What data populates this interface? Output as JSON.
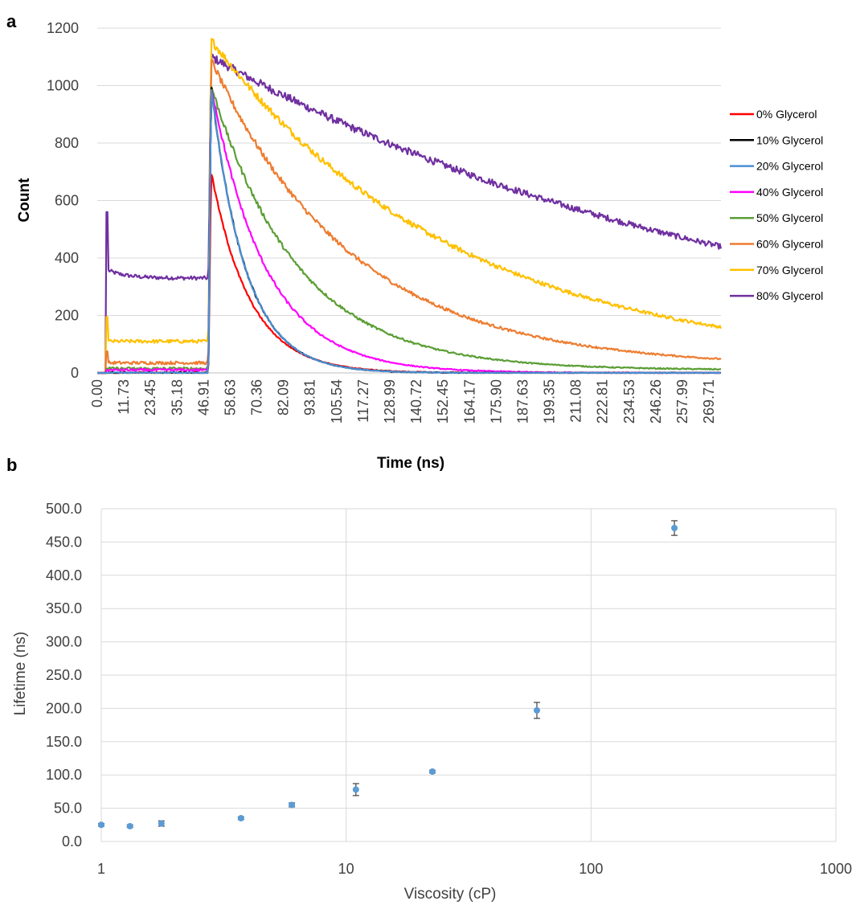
{
  "panel_a": {
    "letter": "a",
    "chart_data": {
      "type": "line",
      "xlabel": "Time (ns)",
      "ylabel": "Count",
      "xlim": [
        0,
        275
      ],
      "ylim": [
        0,
        1200
      ],
      "y_ticks": [
        "0",
        "200",
        "400",
        "600",
        "800",
        "1000",
        "1200"
      ],
      "x_tick_labels": [
        "0.00",
        "11.73",
        "23.45",
        "35.18",
        "46.91",
        "58.63",
        "70.36",
        "82.09",
        "93.81",
        "105.54",
        "117.27",
        "128.99",
        "140.72",
        "152.45",
        "164.17",
        "175.90",
        "187.63",
        "199.35",
        "211.08",
        "222.81",
        "234.53",
        "246.26",
        "257.99",
        "269.71"
      ],
      "grid": "horizontal",
      "legend_position": "right",
      "series": [
        {
          "name": "0% Glycerol",
          "color": "#ff0000",
          "pre_level": 0,
          "peak": 700,
          "tau": 17,
          "plateau": 0,
          "noise": 10
        },
        {
          "name": "10% Glycerol",
          "color": "#000000",
          "pre_level": 0,
          "peak": 1000,
          "tau": 15,
          "plateau": 0,
          "noise": 10
        },
        {
          "name": "20% Glycerol",
          "color": "#4a8fd4",
          "pre_level": 0,
          "peak": 1000,
          "tau": 15,
          "plateau": 0,
          "noise": 10
        },
        {
          "name": "40% Glycerol",
          "color": "#ff00ff",
          "pre_level": 10,
          "peak": 1000,
          "tau": 24,
          "plateau": 0,
          "noise": 14
        },
        {
          "name": "50% Glycerol",
          "color": "#5b9e35",
          "pre_level": 15,
          "peak": 1000,
          "tau": 38,
          "plateau": 10,
          "noise": 16
        },
        {
          "name": "60% Glycerol",
          "color": "#ed7d31",
          "pre_level": 35,
          "peak": 1090,
          "tau": 62,
          "plateau": 20,
          "noise": 18
        },
        {
          "name": "70% Glycerol",
          "color": "#ffc000",
          "pre_level": 110,
          "peak": 1160,
          "tau": 107,
          "plateau": 20,
          "noise": 20
        },
        {
          "name": "80% Glycerol",
          "color": "#7030a0",
          "pre_level": 330,
          "peak": 1100,
          "tau": 245,
          "plateau": 0,
          "noise": 22
        }
      ]
    }
  },
  "panel_b": {
    "letter": "b",
    "chart_data": {
      "type": "scatter",
      "xlabel": "Viscosity (cP)",
      "ylabel": "Lifetime (ns)",
      "x_scale": "log",
      "xlim": [
        1,
        1000
      ],
      "ylim": [
        0,
        500
      ],
      "x_ticks": [
        "1",
        "10",
        "100",
        "1000"
      ],
      "y_ticks": [
        "0.0",
        "50.0",
        "100.0",
        "150.0",
        "200.0",
        "250.0",
        "300.0",
        "350.0",
        "400.0",
        "450.0",
        "500.0"
      ],
      "grid": "both",
      "marker_color": "#5b9bd5",
      "points": [
        {
          "x": 1.0,
          "y": 25,
          "err": 2
        },
        {
          "x": 1.31,
          "y": 23,
          "err": 2
        },
        {
          "x": 1.76,
          "y": 27,
          "err": 4
        },
        {
          "x": 3.72,
          "y": 35,
          "err": 2
        },
        {
          "x": 6.0,
          "y": 55,
          "err": 3
        },
        {
          "x": 10.96,
          "y": 78,
          "err": 9
        },
        {
          "x": 22.5,
          "y": 105,
          "err": 2
        },
        {
          "x": 60.1,
          "y": 197,
          "err": 12
        },
        {
          "x": 219,
          "y": 471,
          "err": 11
        }
      ]
    }
  }
}
